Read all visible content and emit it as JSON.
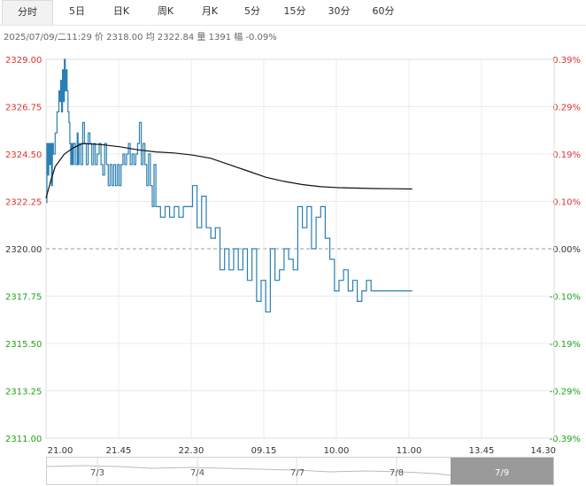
{
  "tabs": [
    {
      "label": "分时",
      "active": true
    },
    {
      "label": "5日",
      "active": false
    },
    {
      "label": "日K",
      "active": false
    },
    {
      "label": "周K",
      "active": false
    },
    {
      "label": "月K",
      "active": false
    },
    {
      "label": "5分",
      "active": false
    },
    {
      "label": "15分",
      "active": false
    },
    {
      "label": "30分",
      "active": false
    },
    {
      "label": "60分",
      "active": false
    }
  ],
  "info_line": "2025/07/09/二11:29  价 2318.00  均 2322.84  量 1391  幅 -0.09%",
  "colors": {
    "up": "#e03030",
    "down": "#1aa31a",
    "neutral": "#333333",
    "price_line": "#2a7fb3",
    "avg_line": "#111111",
    "ref_line": "#999999"
  },
  "chart_data": {
    "type": "line",
    "title": "",
    "xlabel": "",
    "ylabel": "",
    "reference_price": 2320.0,
    "ylim": [
      2311.0,
      2329.0
    ],
    "y_ticks": [
      "2329.00",
      "2326.75",
      "2324.50",
      "2322.25",
      "2320.00",
      "2317.75",
      "2315.50",
      "2313.25",
      "2311.00"
    ],
    "pct_ticks": [
      "0.39%",
      "0.29%",
      "0.19%",
      "0.10%",
      "0.00%",
      "-0.10%",
      "-0.19%",
      "-0.29%",
      "-0.39%"
    ],
    "x_ticks": [
      "21.00",
      "21.45",
      "22.30",
      "09.15",
      "10.00",
      "11.00",
      "13.45",
      "14.30"
    ],
    "grid": true,
    "session_minutes": 555,
    "series": [
      {
        "type": "price",
        "x": [
          0,
          1,
          2,
          3,
          4,
          5,
          6,
          7,
          8,
          10,
          12,
          14,
          15,
          16,
          17,
          18,
          19,
          20,
          21,
          22,
          23,
          24,
          25,
          26,
          27,
          28,
          29,
          30,
          32,
          34,
          35,
          36,
          38,
          40,
          42,
          44,
          46,
          48,
          50,
          52,
          54,
          56,
          58,
          60,
          62,
          64,
          66,
          68,
          70,
          72,
          74,
          76,
          78,
          80,
          82,
          84,
          86,
          88,
          90,
          92,
          94,
          96,
          98,
          100,
          102,
          104,
          106,
          108,
          110,
          112,
          114,
          116,
          118,
          120,
          125,
          130,
          135,
          140,
          145,
          150,
          155,
          160,
          165,
          170,
          175,
          180,
          185,
          190,
          195,
          200,
          205,
          210,
          215,
          220,
          225,
          230,
          235,
          240,
          245,
          250,
          255,
          260,
          265,
          270,
          275,
          280,
          285,
          290,
          295,
          300,
          305,
          310,
          315,
          320,
          325,
          330,
          335,
          340,
          345,
          350,
          355,
          360,
          365,
          370,
          375,
          380,
          385,
          390,
          395,
          400
        ],
        "values": [
          2322.2,
          2325.0,
          2323.5,
          2325.0,
          2324.0,
          2325.0,
          2323.0,
          2325.0,
          2324.5,
          2325.5,
          2326.5,
          2327.5,
          2327.0,
          2328.0,
          2326.5,
          2328.5,
          2327.0,
          2329.0,
          2327.5,
          2328.5,
          2327.5,
          2326.5,
          2326.0,
          2325.0,
          2324.0,
          2325.0,
          2324.0,
          2325.0,
          2324.0,
          2325.5,
          2324.0,
          2325.0,
          2324.0,
          2326.0,
          2325.0,
          2324.0,
          2325.5,
          2325.0,
          2324.0,
          2325.0,
          2324.0,
          2324.5,
          2325.0,
          2324.0,
          2323.5,
          2325.0,
          2324.0,
          2323.0,
          2324.0,
          2323.0,
          2324.0,
          2323.0,
          2324.0,
          2323.0,
          2324.0,
          2324.5,
          2324.0,
          2324.5,
          2325.0,
          2324.0,
          2324.5,
          2324.0,
          2324.5,
          2325.0,
          2326.0,
          2324.0,
          2325.0,
          2324.0,
          2323.0,
          2324.5,
          2323.0,
          2322.0,
          2324.0,
          2322.0,
          2321.5,
          2322.0,
          2321.5,
          2322.0,
          2321.5,
          2322.0,
          2322.0,
          2323.0,
          2321.0,
          2322.5,
          2321.0,
          2320.5,
          2321.0,
          2319.0,
          2320.0,
          2319.0,
          2320.0,
          2319.0,
          2320.0,
          2318.5,
          2320.0,
          2317.5,
          2318.5,
          2317.0,
          2320.0,
          2318.5,
          2319.0,
          2320.0,
          2319.5,
          2319.0,
          2322.0,
          2321.0,
          2322.0,
          2320.0,
          2321.5,
          2322.0,
          2320.5,
          2319.5,
          2318.0,
          2318.5,
          2319.0,
          2318.0,
          2318.5,
          2317.5,
          2318.0,
          2318.5,
          2318.0,
          2318.0,
          2318.0,
          2318.0,
          2318.0,
          2318.0,
          2318.0,
          2318.0,
          2318.0,
          2318.0
        ]
      },
      {
        "type": "average",
        "x": [
          0,
          5,
          10,
          20,
          30,
          40,
          60,
          80,
          100,
          120,
          140,
          160,
          180,
          200,
          220,
          240,
          260,
          280,
          300,
          320,
          340,
          360,
          380,
          400
        ],
        "values": [
          2322.4,
          2323.2,
          2323.9,
          2324.5,
          2324.8,
          2325.0,
          2324.95,
          2324.85,
          2324.7,
          2324.6,
          2324.55,
          2324.45,
          2324.3,
          2324.0,
          2323.7,
          2323.4,
          2323.2,
          2323.05,
          2322.95,
          2322.9,
          2322.88,
          2322.86,
          2322.85,
          2322.84
        ]
      }
    ]
  },
  "navigator": {
    "labels": [
      "7/3",
      "7/4",
      "7/7",
      "7/8",
      "7/9"
    ]
  }
}
